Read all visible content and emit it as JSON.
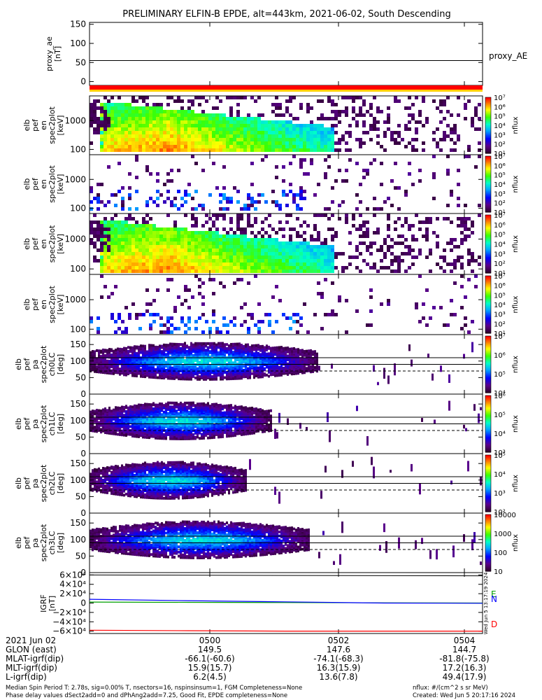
{
  "title": "PRELIMINARY ELFIN-B EPDE, alt=443km, 2021-06-02, South Descending",
  "chart_data": [
    {
      "type": "line",
      "panel": "proxy_ae",
      "ylabel_lines": [
        "proxy_ae",
        "[nT]"
      ],
      "yticks": [
        "150",
        "100",
        "50",
        "0"
      ],
      "ylim": [
        -10,
        155
      ],
      "series": [
        {
          "name": "proxy_AE",
          "values": [
            55,
            55
          ]
        }
      ],
      "legend": "proxy_AE"
    },
    {
      "type": "heatmap",
      "panel": "spec2plot energy 1",
      "ylabel_lines": [
        "elb",
        "pef",
        "en",
        "spec2plot",
        "[keV]"
      ],
      "yticks": [
        "1000",
        "100"
      ],
      "scale": "log",
      "cbar_ticks": [
        "10^7",
        "10^6",
        "10^5",
        "10^4",
        "10^3",
        "10^2",
        "10^1"
      ],
      "cbar_label": "nflux"
    },
    {
      "type": "heatmap",
      "panel": "spec2plot energy 2",
      "ylabel_lines": [
        "elb",
        "pef",
        "en",
        "spec2plot",
        "[keV]"
      ],
      "yticks": [
        "1000",
        "100"
      ],
      "scale": "log",
      "cbar_ticks": [
        "10^7",
        "10^6",
        "10^5",
        "10^4",
        "10^3",
        "10^2",
        "10^1"
      ],
      "cbar_label": "nflux"
    },
    {
      "type": "heatmap",
      "panel": "spec2plot energy 3",
      "ylabel_lines": [
        "elb",
        "pef",
        "en",
        "spec2plot",
        "[keV]"
      ],
      "yticks": [
        "1000",
        "100"
      ],
      "scale": "log",
      "cbar_ticks": [
        "10^7",
        "10^6",
        "10^5",
        "10^4",
        "10^3",
        "10^2",
        "10^1"
      ],
      "cbar_label": "nflux"
    },
    {
      "type": "heatmap",
      "panel": "spec2plot energy 4",
      "ylabel_lines": [
        "elb",
        "pef",
        "en",
        "spec2plot",
        "[keV]"
      ],
      "yticks": [
        "1000",
        "100"
      ],
      "scale": "log",
      "cbar_ticks": [
        "10^7",
        "10^6",
        "10^5",
        "10^4",
        "10^3",
        "10^2",
        "10^1"
      ],
      "cbar_label": "nflux"
    },
    {
      "type": "heatmap",
      "panel": "spec2plot ch0LC",
      "ylabel_lines": [
        "elb",
        "pef",
        "pa",
        "spec2plot",
        "ch0LC",
        "[deg]"
      ],
      "yticks": [
        "150",
        "100",
        "50",
        "0"
      ],
      "ylim": [
        0,
        180
      ],
      "cbar_ticks": [
        "10^7",
        "10^6",
        "10^5",
        "10^4"
      ],
      "cbar_label": "nflux"
    },
    {
      "type": "heatmap",
      "panel": "spec2plot ch1LC",
      "ylabel_lines": [
        "elb",
        "pef",
        "pa",
        "spec2plot",
        "ch1LC",
        "[deg]"
      ],
      "yticks": [
        "150",
        "100",
        "50",
        "0"
      ],
      "ylim": [
        0,
        180
      ],
      "cbar_ticks": [
        "10^6",
        "10^5",
        "10^4",
        "10^3"
      ],
      "cbar_label": "nflux"
    },
    {
      "type": "heatmap",
      "panel": "spec2plot ch2LC",
      "ylabel_lines": [
        "elb",
        "pef",
        "pa",
        "spec2plot",
        "ch2LC",
        "[deg]"
      ],
      "yticks": [
        "150",
        "100",
        "50",
        "0"
      ],
      "ylim": [
        0,
        180
      ],
      "cbar_ticks": [
        "10^5",
        "10^4",
        "10^3",
        "10^2"
      ],
      "cbar_label": "nflux"
    },
    {
      "type": "heatmap",
      "panel": "spec2plot ch3LC",
      "ylabel_lines": [
        "elb",
        "pef",
        "pa",
        "spec2plot",
        "ch3LC",
        "[deg]"
      ],
      "yticks": [
        "150",
        "100",
        "50",
        "0"
      ],
      "ylim": [
        0,
        180
      ],
      "cbar_ticks": [
        "10000",
        "1000",
        "100",
        "10"
      ],
      "cbar_label": "nflux"
    },
    {
      "type": "line",
      "panel": "IGRF",
      "ylabel_lines": [
        "IGRF",
        "[nT]"
      ],
      "yticks": [
        "6×10^4",
        "4×10^4",
        "2×10^4",
        "0",
        "−2×10^4",
        "−4×10^4",
        "−6×10^4"
      ],
      "ylim": [
        -65000,
        65000
      ],
      "series": [
        {
          "name": "E",
          "color": "#00a000",
          "values": [
            2000,
            1500,
            1000,
            500,
            0
          ]
        },
        {
          "name": "N",
          "color": "#0000ff",
          "values": [
            8000,
            5000,
            2500,
            0,
            -500
          ]
        },
        {
          "name": "D",
          "color": "#ff0000",
          "values": [
            -58000,
            -59000,
            -60000,
            -60000,
            -60000
          ]
        }
      ],
      "legend_labels": [
        "E",
        "N",
        "D"
      ],
      "sidebar_text": "Wed Jun  5 13:17:19 2024"
    }
  ],
  "footer": {
    "rows": [
      {
        "label": "2021 Jun 02",
        "values": [
          "0500",
          "0502",
          "0504"
        ]
      },
      {
        "label": "GLON (east)",
        "values": [
          "149.5",
          "147.6",
          "144.7"
        ]
      },
      {
        "label": "MLAT-igrf(dip)",
        "values": [
          "-66.1(-60.6)",
          "-74.1(-68.3)",
          "-81.8(-75.8)"
        ]
      },
      {
        "label": "MLT-igrf(dip)",
        "values": [
          "15.9(15.7)",
          "16.3(15.9)",
          "17.2(16.3)"
        ]
      },
      {
        "label": "L-igrf(dip)",
        "values": [
          "6.2(4.5)",
          "13.6(7.8)",
          "49.4(17.9)"
        ]
      }
    ],
    "note_line1": "Median Spin Period T: 2.78s, sig=0.00% T, nsectors=16, nspinsinsum=1, FGM Completeness=None",
    "note_line2": "Phase delay values dSect2add=0 and dPhAng2add=7.25, Good Fit, EPDE completeness=None",
    "units": "nflux: #/(cm^2 s sr MeV)",
    "created": "Created: Wed Jun  5 20:17:16 2024"
  }
}
